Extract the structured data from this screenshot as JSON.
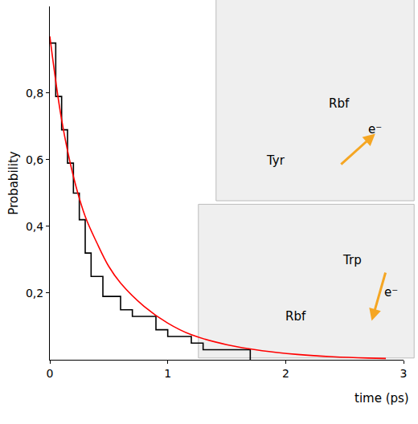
{
  "chart_data": {
    "type": "histogram",
    "xlabel": "time (ps)",
    "ylabel": "Probability",
    "bins": [
      0,
      0.05,
      0.1,
      0.15,
      0.2,
      0.25,
      0.3,
      0.35,
      0.45,
      0.6,
      0.7,
      0.9,
      1.0,
      1.2,
      1.3,
      1.7
    ],
    "counts": [
      0.95,
      0.79,
      0.69,
      0.59,
      0.5,
      0.42,
      0.32,
      0.25,
      0.19,
      0.15,
      0.13,
      0.09,
      0.07,
      0.05,
      0.03
    ],
    "color": "#000000",
    "fit": {
      "x": [
        0,
        0.1,
        0.2,
        0.3,
        0.4,
        0.5,
        0.6,
        0.8,
        1.0,
        1.2,
        1.5,
        1.8,
        2.1,
        2.4,
        2.7,
        2.85
      ],
      "values": [
        0.97,
        0.72,
        0.55,
        0.43,
        0.35,
        0.28,
        0.23,
        0.16,
        0.11,
        0.075,
        0.045,
        0.027,
        0.016,
        0.009,
        0.005,
        0.004
      ],
      "color": "#ff0000",
      "type": "line"
    },
    "xlim": [
      0,
      3
    ],
    "ylim": [
      0,
      1.06
    ],
    "xticks": [
      0,
      1,
      2,
      3
    ],
    "yticks": [
      {
        "value": 0.2,
        "label": "0,2"
      },
      {
        "value": 0.4,
        "label": "0,4"
      },
      {
        "value": 0.6,
        "label": "0,6"
      },
      {
        "value": 0.8,
        "label": "0,8"
      }
    ],
    "grid": false,
    "insets": [
      {
        "labels": [
          "Rbf",
          "Tyr",
          "e⁻"
        ]
      },
      {
        "labels": [
          "Trp",
          "Rbf",
          "e⁻"
        ]
      }
    ]
  }
}
